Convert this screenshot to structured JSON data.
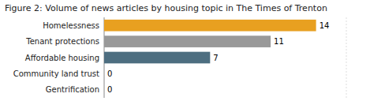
{
  "chart_data": {
    "type": "bar",
    "orientation": "horizontal",
    "title": "Figure 2: Volume of news articles by housing topic in The Times of Trenton",
    "categories": [
      "Gentrification",
      "Community land trust",
      "Affordable housing",
      "Tenant protections",
      "Homelessness"
    ],
    "values": [
      0,
      0,
      7,
      11,
      14
    ],
    "colors": [
      "#4d6e80",
      "#4d6e80",
      "#4d6e80",
      "#999999",
      "#e8a020"
    ],
    "xlim": [
      0,
      16.0
    ],
    "data_labels": true,
    "tick_labels": "y",
    "grid": false
  }
}
